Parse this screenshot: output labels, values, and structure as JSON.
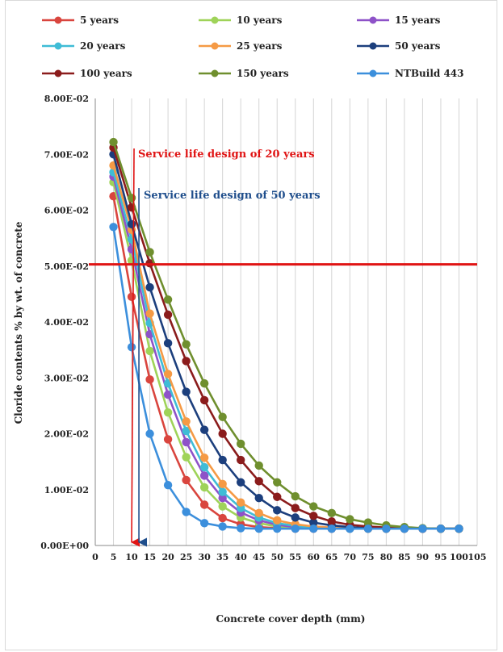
{
  "chart_data": {
    "type": "line",
    "title": "",
    "xlabel": "Concrete cover depth (mm)",
    "ylabel": "Cloride contents % by wt. of concrete",
    "xlim": [
      0,
      105
    ],
    "ylim": [
      0,
      0.08
    ],
    "x_ticks": [
      "0",
      "5",
      "10",
      "15",
      "20",
      "25",
      "30",
      "35",
      "40",
      "45",
      "50",
      "55",
      "60",
      "65",
      "70",
      "75",
      "80",
      "85",
      "90",
      "95",
      "100",
      "105"
    ],
    "y_ticks": [
      "0.00E+00",
      "1.00E-02",
      "2.00E-02",
      "3.00E-02",
      "4.00E-02",
      "5.00E-02",
      "6.00E-02",
      "7.00E-02",
      "8.00E-02"
    ],
    "grid": "vertical",
    "legend_position": "top",
    "x": [
      5,
      10,
      15,
      20,
      25,
      30,
      35,
      40,
      45,
      50,
      55,
      60,
      65,
      70,
      75,
      80,
      85,
      90,
      95,
      100
    ],
    "series": [
      {
        "name": "5 years",
        "color": "#d9453e",
        "values": [
          0.0625,
          0.0445,
          0.0297,
          0.019,
          0.0117,
          0.0073,
          0.0049,
          0.0038,
          0.0033,
          0.0031,
          0.003,
          0.003,
          0.003,
          0.003,
          0.003,
          0.003,
          0.003,
          0.003,
          0.003,
          0.003
        ]
      },
      {
        "name": "10 years",
        "color": "#9fd359",
        "values": [
          0.065,
          0.051,
          0.0348,
          0.0238,
          0.0158,
          0.0104,
          0.007,
          0.005,
          0.004,
          0.0034,
          0.0032,
          0.0031,
          0.003,
          0.003,
          0.003,
          0.003,
          0.003,
          0.003,
          0.003,
          0.003
        ]
      },
      {
        "name": "15 years",
        "color": "#8e52c8",
        "values": [
          0.066,
          0.053,
          0.0378,
          0.027,
          0.0185,
          0.0125,
          0.0085,
          0.0059,
          0.0045,
          0.0037,
          0.0033,
          0.0031,
          0.003,
          0.003,
          0.003,
          0.003,
          0.003,
          0.003,
          0.003,
          0.003
        ]
      },
      {
        "name": "20 years",
        "color": "#3fbcd6",
        "values": [
          0.0668,
          0.0548,
          0.0398,
          0.029,
          0.0205,
          0.014,
          0.0096,
          0.0067,
          0.005,
          0.004,
          0.0035,
          0.0032,
          0.0031,
          0.003,
          0.003,
          0.003,
          0.003,
          0.003,
          0.003,
          0.003
        ]
      },
      {
        "name": "25 years",
        "color": "#f59a45",
        "values": [
          0.068,
          0.0565,
          0.0415,
          0.0307,
          0.0222,
          0.0157,
          0.011,
          0.0077,
          0.0058,
          0.0045,
          0.0038,
          0.0034,
          0.0032,
          0.0031,
          0.003,
          0.003,
          0.003,
          0.003,
          0.003,
          0.003
        ]
      },
      {
        "name": "50 years",
        "color": "#1c3f7d",
        "values": [
          0.07,
          0.0575,
          0.0462,
          0.0362,
          0.0275,
          0.0207,
          0.0153,
          0.0113,
          0.0085,
          0.0063,
          0.005,
          0.0041,
          0.0036,
          0.0033,
          0.0031,
          0.003,
          0.003,
          0.003,
          0.003,
          0.003
        ]
      },
      {
        "name": "100 years",
        "color": "#8b1c1c",
        "values": [
          0.0712,
          0.0605,
          0.0505,
          0.0413,
          0.033,
          0.026,
          0.02,
          0.0153,
          0.0115,
          0.0087,
          0.0067,
          0.0053,
          0.0043,
          0.0037,
          0.0034,
          0.0032,
          0.0031,
          0.003,
          0.003,
          0.003
        ]
      },
      {
        "name": "150 years",
        "color": "#6f8f2e",
        "values": [
          0.0722,
          0.0622,
          0.0525,
          0.044,
          0.036,
          0.029,
          0.023,
          0.0182,
          0.0143,
          0.0113,
          0.0088,
          0.007,
          0.0058,
          0.0047,
          0.0041,
          0.0036,
          0.0033,
          0.0031,
          0.003,
          0.003
        ]
      },
      {
        "name": "NTBuild 443",
        "color": "#3c8fdc",
        "values": [
          0.057,
          0.0355,
          0.02,
          0.0108,
          0.006,
          0.004,
          0.0034,
          0.0031,
          0.003,
          0.003,
          0.003,
          0.003,
          0.003,
          0.003,
          0.003,
          0.003,
          0.003,
          0.003,
          0.003,
          0.003
        ]
      }
    ],
    "threshold": {
      "y": 0.0503,
      "color": "#e01414"
    },
    "annotations": [
      {
        "text": "Service life design of 20 years",
        "color": "#e01414",
        "arrow_x": 10
      },
      {
        "text": "Service life design of 50 years",
        "color": "#1f4e8c",
        "arrow_x": 12
      }
    ]
  }
}
